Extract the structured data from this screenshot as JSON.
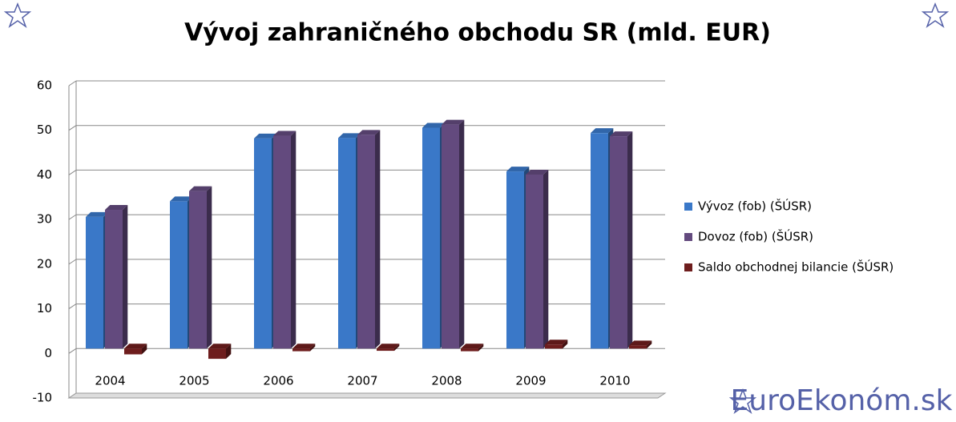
{
  "chart_data": {
    "type": "bar",
    "title": "Vývoj zahraničného obchodu SR (mld. EUR)",
    "categories": [
      "2004",
      "2005",
      "2006",
      "2007",
      "2008",
      "2009",
      "2010"
    ],
    "series": [
      {
        "name": "Vývoz (fob) (ŠÚSR)",
        "color": "#3a78c8",
        "values": [
          29.5,
          33.0,
          47.1,
          47.2,
          49.5,
          39.7,
          48.3
        ]
      },
      {
        "name": "Dovoz (fob)  (ŠÚSR)",
        "color": "#634a7e",
        "values": [
          31.1,
          35.3,
          47.7,
          47.9,
          50.2,
          39.0,
          47.6
        ]
      },
      {
        "name": "Saldo obchodnej bilancie (ŠÚSR)",
        "color": "#6e1d1d",
        "values": [
          -1.3,
          -2.3,
          -0.6,
          -0.5,
          -0.6,
          0.9,
          0.7
        ]
      }
    ],
    "ylim": [
      -10,
      60
    ],
    "yticks": [
      -10,
      0,
      10,
      20,
      30,
      40,
      50,
      60
    ],
    "grid": true,
    "legend": "right"
  },
  "brand": "EuroEkonóm.sk"
}
